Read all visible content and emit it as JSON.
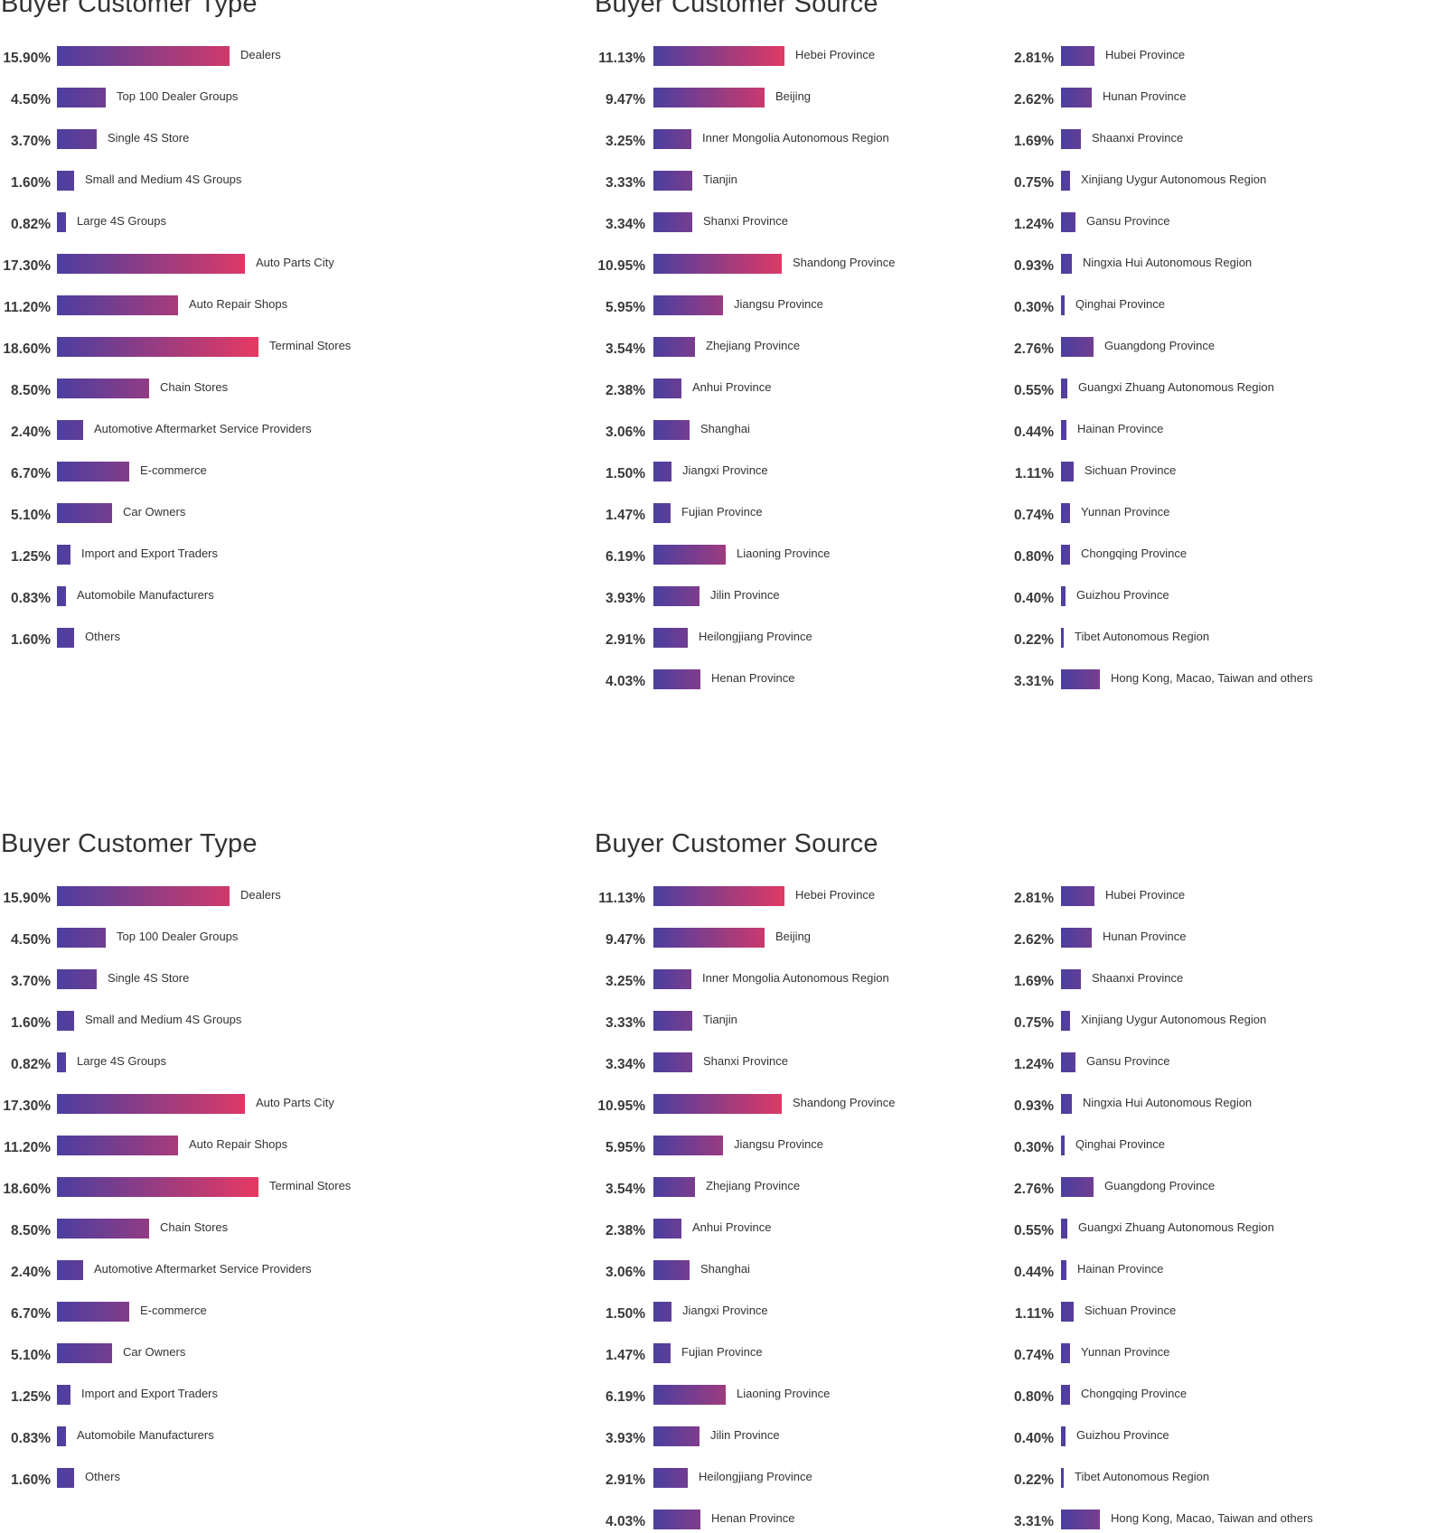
{
  "colors": {
    "bar_start": "#4b3fa0",
    "bar_end": "#e63962"
  },
  "panels": [
    {
      "customer_type": {
        "title": "Buyer Customer Type"
      },
      "customer_source": {
        "title": "Buyer Customer Source"
      }
    },
    {
      "customer_type": {
        "title": "Buyer Customer Type"
      },
      "customer_source": {
        "title": "Buyer Customer Source"
      }
    }
  ],
  "chart_data": [
    {
      "type": "bar",
      "title": "Buyer Customer Type",
      "orientation": "horizontal",
      "unit": "%",
      "categories": [
        "Dealers",
        "Top 100 Dealer Groups",
        "Single 4S Store",
        "Small and Medium 4S Groups",
        "Large 4S Groups",
        "Auto Parts City",
        "Auto Repair Shops",
        "Terminal Stores",
        "Chain Stores",
        "Automotive Aftermarket Service Providers",
        "E-commerce",
        "Car Owners",
        "Import and Export Traders",
        "Automobile Manufacturers",
        "Others"
      ],
      "values": [
        15.9,
        4.5,
        3.7,
        1.6,
        0.82,
        17.3,
        11.2,
        18.6,
        8.5,
        2.4,
        6.7,
        5.1,
        1.25,
        0.83,
        1.6
      ],
      "labels": [
        "15.90%",
        "4.50%",
        "3.70%",
        "1.60%",
        "0.82%",
        "17.30%",
        "11.20%",
        "18.60%",
        "8.50%",
        "2.40%",
        "6.70%",
        "5.10%",
        "1.25%",
        "0.83%",
        "1.60%"
      ]
    },
    {
      "type": "bar",
      "title": "Buyer Customer Source",
      "orientation": "horizontal",
      "unit": "%",
      "categories": [
        "Hebei Province",
        "Beijing",
        "Inner Mongolia Autonomous Region",
        "Tianjin",
        "Shanxi Province",
        "Shandong Province",
        "Jiangsu Province",
        "Zhejiang Province",
        "Anhui Province",
        "Shanghai",
        "Jiangxi Province",
        "Fujian Province",
        "Liaoning Province",
        "Jilin Province",
        "Heilongjiang Province",
        "Henan Province"
      ],
      "values": [
        11.13,
        9.47,
        3.25,
        3.33,
        3.34,
        10.95,
        5.95,
        3.54,
        2.38,
        3.06,
        1.5,
        1.47,
        6.19,
        3.93,
        2.91,
        4.03
      ],
      "labels": [
        "11.13%",
        "9.47%",
        "3.25%",
        "3.33%",
        "3.34%",
        "10.95%",
        "5.95%",
        "3.54%",
        "2.38%",
        "3.06%",
        "1.50%",
        "1.47%",
        "6.19%",
        "3.93%",
        "2.91%",
        "4.03%"
      ]
    },
    {
      "type": "bar",
      "title": "",
      "orientation": "horizontal",
      "unit": "%",
      "categories": [
        "Hubei Province",
        "Hunan Province",
        "Shaanxi Province",
        "Xinjiang Uygur Autonomous Region",
        "Gansu Province",
        "Ningxia Hui Autonomous Region",
        "Qinghai Province",
        "Guangdong Province",
        "Guangxi Zhuang Autonomous Region",
        "Hainan Province",
        "Sichuan Province",
        "Yunnan Province",
        "Chongqing Province",
        "Guizhou Province",
        "Tibet Autonomous Region",
        "Hong Kong, Macao, Taiwan and others"
      ],
      "values": [
        2.81,
        2.62,
        1.69,
        0.75,
        1.24,
        0.93,
        0.3,
        2.76,
        0.55,
        0.44,
        1.11,
        0.74,
        0.8,
        0.4,
        0.22,
        3.31
      ],
      "labels": [
        "2.81%",
        "2.62%",
        "1.69%",
        "0.75%",
        "1.24%",
        "0.93%",
        "0.30%",
        "2.76%",
        "0.55%",
        "0.44%",
        "1.11%",
        "0.74%",
        "0.80%",
        "0.40%",
        "0.22%",
        "3.31%"
      ]
    }
  ]
}
